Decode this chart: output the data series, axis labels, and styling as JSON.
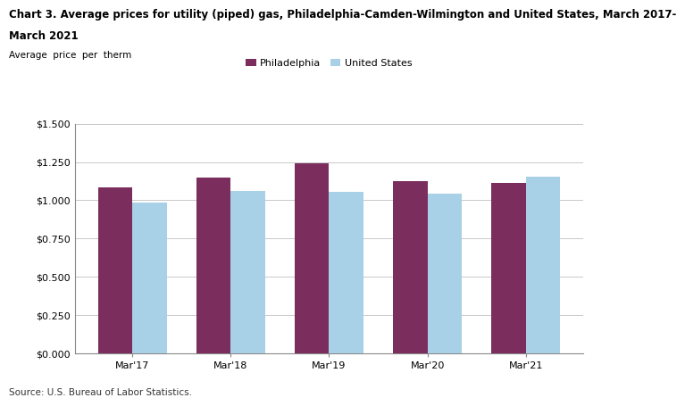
{
  "title_line1": "Chart 3. Average prices for utility (piped) gas, Philadelphia-Camden-Wilmington and United States, March 2017-",
  "title_line2": "March 2021",
  "ylabel_text": "Average  price  per  therm",
  "source": "Source: U.S. Bureau of Labor Statistics.",
  "categories": [
    "Mar'17",
    "Mar'18",
    "Mar'19",
    "Mar'20",
    "Mar'21"
  ],
  "philadelphia": [
    1.082,
    1.147,
    1.243,
    1.127,
    1.112
  ],
  "us": [
    0.987,
    1.063,
    1.057,
    1.042,
    1.153
  ],
  "philly_color": "#7b2d5e",
  "us_color": "#a8d0e6",
  "ylim": [
    0.0,
    1.5
  ],
  "yticks": [
    0.0,
    0.25,
    0.5,
    0.75,
    1.0,
    1.25,
    1.5
  ],
  "ytick_labels": [
    "$0.000",
    "$0.250",
    "$0.500",
    "$0.750",
    "$1.000",
    "$1.250",
    "$1.500"
  ],
  "legend_philly": "Philadelphia",
  "legend_us": "United States",
  "bar_width": 0.35,
  "title_fontsize": 8.5,
  "ylabel_fontsize": 7.5,
  "tick_fontsize": 8,
  "legend_fontsize": 8,
  "source_fontsize": 7.5,
  "background_color": "#ffffff",
  "grid_color": "#c8c8c8"
}
